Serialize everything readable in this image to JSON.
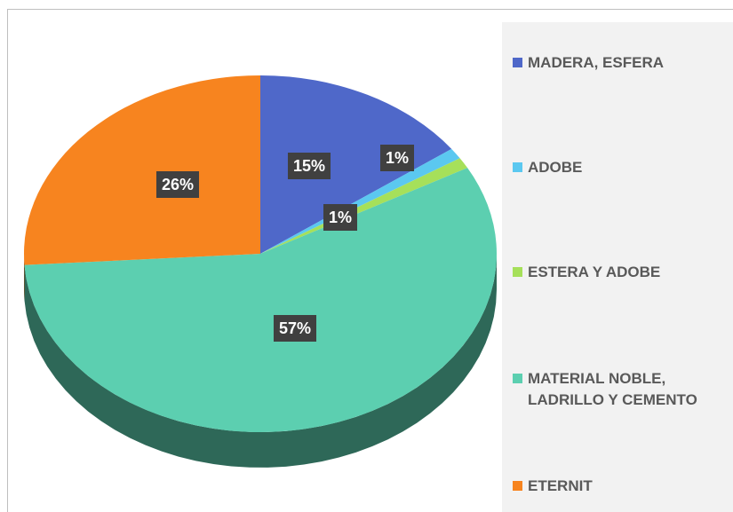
{
  "chart_data": {
    "type": "pie",
    "categories": [
      "MADERA, ESFERA",
      "ADOBE",
      "ESTERA Y ADOBE",
      "MATERIAL NOBLE, LADRILLO Y CEMENTO",
      "ETERNIT"
    ],
    "values": [
      15,
      1,
      1,
      57,
      26
    ],
    "value_labels": [
      "15%",
      "1%",
      "1%",
      "57%",
      "26%"
    ],
    "colors": [
      "#4f68c9",
      "#5bc8f0",
      "#a6e05a",
      "#5ccfb0",
      "#f7841f"
    ]
  }
}
